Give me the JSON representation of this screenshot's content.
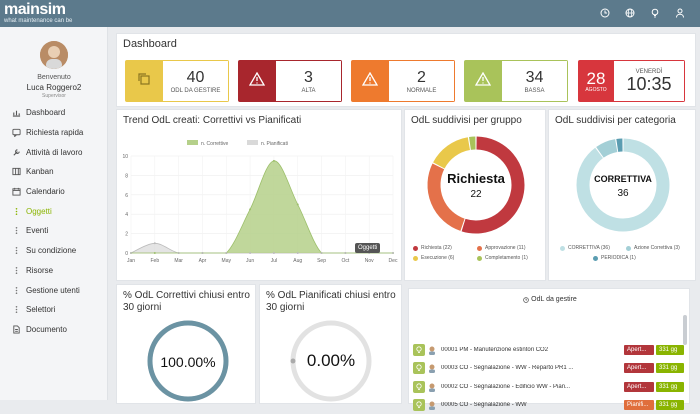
{
  "app": {
    "brand": "mainsim",
    "tagline": "what maintenance can be"
  },
  "topbar": {
    "icons": [
      "clock-icon",
      "globe-icon",
      "lightbulb-icon",
      "user-icon"
    ]
  },
  "user": {
    "welcome": "Benvenuto",
    "name": "Luca Roggero2",
    "role": "Supervisor"
  },
  "nav": [
    {
      "label": "Dashboard",
      "icon": "chart-icon"
    },
    {
      "label": "Richiesta rapida",
      "icon": "message-icon"
    },
    {
      "label": "Attività di lavoro",
      "icon": "wrench-icon"
    },
    {
      "label": "Kanban",
      "icon": "kanban-icon"
    },
    {
      "label": "Calendario",
      "icon": "calendar-icon"
    },
    {
      "label": "Oggetti",
      "icon": "dots-icon",
      "active": true
    },
    {
      "label": "Eventi",
      "icon": "dots-icon"
    },
    {
      "label": "Su condizione",
      "icon": "dots-icon"
    },
    {
      "label": "Risorse",
      "icon": "dots-icon"
    },
    {
      "label": "Gestione utenti",
      "icon": "dots-icon"
    },
    {
      "label": "Selettori",
      "icon": "dots-icon"
    },
    {
      "label": "Documento",
      "icon": "document-icon"
    }
  ],
  "dashboard": {
    "title": "Dashboard",
    "kpis": [
      {
        "value": "40",
        "caption": "ODL DA GESTIRE",
        "color": "#e9c84a",
        "icon": "copy-icon"
      },
      {
        "value": "3",
        "caption": "ALTA",
        "color": "#a8262d",
        "icon": "warning-icon"
      },
      {
        "value": "2",
        "caption": "NORMALE",
        "color": "#ee7a2e",
        "icon": "warning-icon"
      },
      {
        "value": "34",
        "caption": "BASSA",
        "color": "#a9c35a",
        "icon": "warning-icon"
      }
    ],
    "date": {
      "day": "28",
      "month": "AGOSTO",
      "weekday": "VENERDÌ",
      "time": "10:35",
      "color": "#d7363d"
    }
  },
  "trend": {
    "title": "Trend OdL creati: Correttivi vs Pianificati",
    "legend": [
      {
        "name": "n. Correttive",
        "color": "#b5d08a"
      },
      {
        "name": "n. Pianificati",
        "color": "#d9d9d9"
      }
    ],
    "tooltip": "Oggetti",
    "chart_data": {
      "type": "area",
      "categories": [
        "Jan",
        "Feb",
        "Mar",
        "Apr",
        "May",
        "Jun",
        "Jul",
        "Aug",
        "Sep",
        "Oct",
        "Nov",
        "Dec"
      ],
      "ylim": [
        0,
        10
      ],
      "yticks": [
        0,
        2,
        4,
        6,
        8,
        10
      ],
      "series": [
        {
          "name": "n. Correttive",
          "values": [
            0,
            0,
            0,
            0,
            0,
            4.5,
            9.5,
            5,
            0,
            0,
            0,
            0
          ]
        },
        {
          "name": "n. Pianificati",
          "values": [
            0,
            1,
            0,
            0,
            0,
            0,
            0,
            0,
            0,
            0,
            0,
            0
          ]
        }
      ]
    }
  },
  "gruppo": {
    "title": "OdL suddivisi per gruppo",
    "center_label": "Richiesta",
    "center_value": "22",
    "legend": [
      {
        "name": "Richiesta (22)",
        "color": "#c0393f"
      },
      {
        "name": "Approvazione (11)",
        "color": "#e4714a"
      },
      {
        "name": "Esecuzione (6)",
        "color": "#e9c84a"
      },
      {
        "name": "Completamento (1)",
        "color": "#a9c35a"
      }
    ],
    "chart_data": {
      "type": "pie",
      "labels": [
        "Richiesta",
        "Approvazione",
        "Esecuzione",
        "Completamento"
      ],
      "values": [
        22,
        11,
        6,
        1
      ]
    }
  },
  "categoria": {
    "title": "OdL suddivisi per categoria",
    "center_label": "CORRETTIVA",
    "center_value": "36",
    "legend": [
      {
        "name": "CORRETTIVA (36)",
        "color": "#bfe0e4"
      },
      {
        "name": "Azione Correttiva (3)",
        "color": "#a3cfd6"
      },
      {
        "name": "PERIODICA (1)",
        "color": "#5b9db1"
      }
    ],
    "chart_data": {
      "type": "pie",
      "labels": [
        "CORRETTIVA",
        "Azione Correttiva",
        "PERIODICA"
      ],
      "values": [
        36,
        3,
        1
      ]
    }
  },
  "correttivi": {
    "title": "% OdL Correttivi chiusi entro 30 giorni",
    "value": "100.00%",
    "fraction": 1.0,
    "color": "#6b93a3"
  },
  "pianificati": {
    "title": "% OdL Pianificati chiusi entro 30 giorni",
    "value": "0.00%",
    "fraction": 0.0,
    "color": "#d9d9d9"
  },
  "gestire": {
    "title": "OdL da gestire",
    "rows": [
      {
        "text": "00001 PM - Manutenzione estintori CO2",
        "status": "Apert...",
        "days": "331 gg",
        "status_color": "#b2363b"
      },
      {
        "text": "00003 CO - Segnalazione - WW - Reparto PR1 ...",
        "status": "Apert...",
        "days": "331 gg",
        "status_color": "#b2363b"
      },
      {
        "text": "00002 CO - Segnalazione - Edificio WW - Pian...",
        "status": "Apert...",
        "days": "331 gg",
        "status_color": "#b2363b"
      },
      {
        "text": "00005 CO - Segnalazione - WW",
        "status": "Pianifi...",
        "days": "331 gg",
        "status_color": "#e06e3c"
      }
    ]
  }
}
